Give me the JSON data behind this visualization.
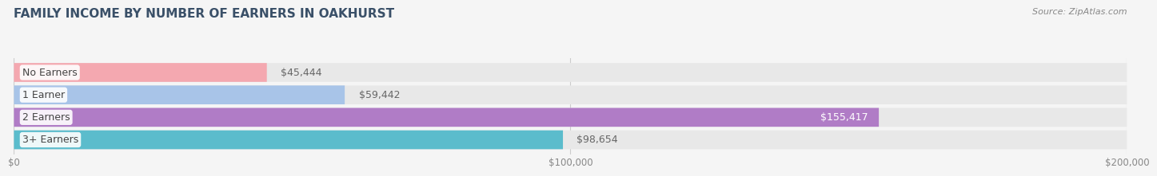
{
  "title": "FAMILY INCOME BY NUMBER OF EARNERS IN OAKHURST",
  "source": "Source: ZipAtlas.com",
  "categories": [
    "No Earners",
    "1 Earner",
    "2 Earners",
    "3+ Earners"
  ],
  "values": [
    45444,
    59442,
    155417,
    98654
  ],
  "bar_colors": [
    "#f4a8b0",
    "#a8c4e8",
    "#b07cc6",
    "#5bbccc"
  ],
  "label_colors": [
    "#888888",
    "#888888",
    "#ffffff",
    "#888888"
  ],
  "bg_color": "#f5f5f5",
  "bar_bg_color": "#e8e8e8",
  "xlim": [
    0,
    200000
  ],
  "xticks": [
    0,
    100000,
    200000
  ],
  "xtick_labels": [
    "$0",
    "$100,000",
    "$200,000"
  ],
  "title_color": "#3a5068",
  "title_fontsize": 11,
  "bar_height": 0.6,
  "bar_label_fontsize": 9,
  "category_fontsize": 9,
  "source_fontsize": 8
}
